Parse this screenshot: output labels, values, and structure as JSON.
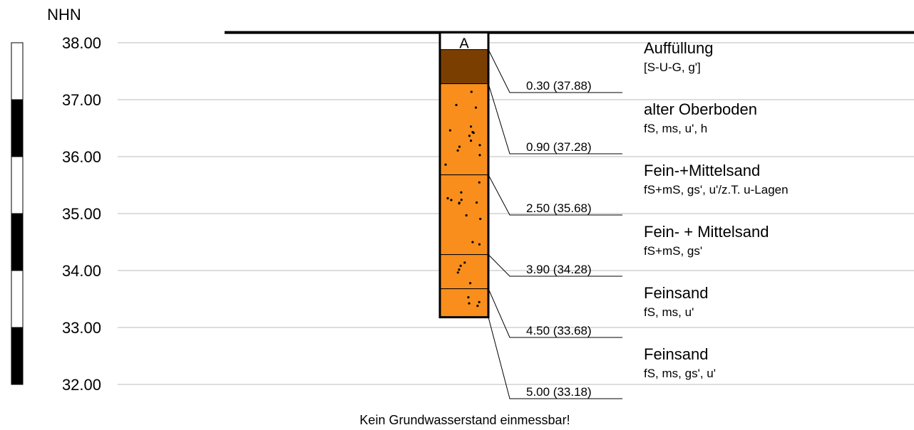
{
  "axis": {
    "label": "NHN",
    "ticks": [
      "38.00",
      "37.00",
      "36.00",
      "35.00",
      "34.00",
      "33.00",
      "32.00"
    ]
  },
  "column": {
    "name": "A"
  },
  "layers": [
    {
      "depth_label": "0.30 (37.88)",
      "title": "Auffüllung",
      "description": "[S-U-G, g']"
    },
    {
      "depth_label": "0.90 (37.28)",
      "title": "alter Oberboden",
      "description": "fS, ms, u', h"
    },
    {
      "depth_label": "2.50 (35.68)",
      "title": "Fein-+Mittelsand",
      "description": "fS+mS, gs', u'/z.T. u-Lagen"
    },
    {
      "depth_label": "3.90 (34.28)",
      "title": "Fein- + Mittelsand",
      "description": "fS+mS, gs'"
    },
    {
      "depth_label": "4.50 (33.68)",
      "title": "Feinsand",
      "description": "fS, ms, u'"
    },
    {
      "depth_label": "5.00 (33.18)",
      "title": "Feinsand",
      "description": "fS, ms, gs', u'"
    }
  ],
  "footer": "Kein Grundwasserstand einmessbar!"
}
